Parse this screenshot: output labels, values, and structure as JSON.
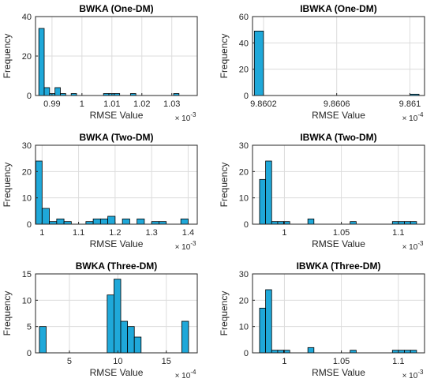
{
  "chart_data": [
    {
      "type": "bar",
      "title": "BWKA (One-DM)",
      "xlabel": "RMSE Value",
      "ylabel": "Frequency",
      "x_exponent_label": "× 10",
      "x_exponent": "-3",
      "xlim": [
        0.9845,
        1.0385
      ],
      "ylim": [
        0,
        40
      ],
      "xticks": [
        0.99,
        1.0,
        1.01,
        1.02,
        1.03
      ],
      "xtick_labels": [
        "0.99",
        "1",
        "1.01",
        "1.02",
        "1.03"
      ],
      "yticks": [
        0,
        20,
        40
      ],
      "ytick_labels": [
        "0",
        "20",
        "40"
      ],
      "grid": true,
      "bin_edges": [
        0.9856,
        0.9874,
        0.9892,
        0.991,
        0.9928,
        0.9946,
        0.9964,
        0.9982,
        1.0,
        1.0018,
        1.0036,
        1.0054,
        1.0072,
        1.009,
        1.0108,
        1.0126,
        1.0144,
        1.0162,
        1.018,
        1.0198,
        1.0216,
        1.0234,
        1.0252,
        1.027,
        1.0288,
        1.0306,
        1.0324,
        1.0342,
        1.036
      ],
      "values": [
        34,
        4,
        1,
        4,
        1,
        0,
        1,
        0,
        0,
        0,
        0,
        0,
        1,
        1,
        1,
        0,
        0,
        1,
        0,
        0,
        0,
        0,
        0,
        0,
        0,
        1,
        0,
        0
      ]
    },
    {
      "type": "bar",
      "title": "IBWKA (One-DM)",
      "xlabel": "RMSE Value",
      "ylabel": "Frequency",
      "x_exponent_label": "× 10",
      "x_exponent": "-4",
      "xlim": [
        9.86014,
        9.86108
      ],
      "ylim": [
        0,
        60
      ],
      "xticks": [
        9.8602,
        9.8606,
        9.861
      ],
      "xtick_labels": [
        "9.8602",
        "9.8606",
        "9.861"
      ],
      "yticks": [
        0,
        20,
        40,
        60
      ],
      "ytick_labels": [
        "0",
        "20",
        "40",
        "60"
      ],
      "grid": true,
      "bin_edges": [
        9.86015,
        9.8602,
        9.86025,
        9.8603,
        9.86035,
        9.8604,
        9.86045,
        9.8605,
        9.86055,
        9.8606,
        9.86065,
        9.8607,
        9.86075,
        9.8608,
        9.86085,
        9.8609,
        9.86095,
        9.861,
        9.86105
      ],
      "values": [
        49,
        0,
        0,
        0,
        0,
        0,
        0,
        0,
        0,
        0,
        0,
        0,
        0,
        0,
        0,
        0,
        0,
        1
      ]
    },
    {
      "type": "bar",
      "title": "BWKA (Two-DM)",
      "xlabel": "RMSE Value",
      "ylabel": "Frequency",
      "x_exponent_label": "× 10",
      "x_exponent": "-3",
      "xlim": [
        0.982,
        1.425
      ],
      "ylim": [
        0,
        30
      ],
      "xticks": [
        1.0,
        1.1,
        1.2,
        1.3,
        1.4
      ],
      "xtick_labels": [
        "1",
        "1.1",
        "1.2",
        "1.3",
        "1.4"
      ],
      "yticks": [
        0,
        10,
        20,
        30
      ],
      "ytick_labels": [
        "0",
        "10",
        "20",
        "30"
      ],
      "grid": true,
      "bin_edges": [
        0.983,
        1.0,
        1.02,
        1.04,
        1.06,
        1.08,
        1.1,
        1.12,
        1.14,
        1.16,
        1.18,
        1.2,
        1.22,
        1.24,
        1.26,
        1.28,
        1.3,
        1.32,
        1.34,
        1.36,
        1.38,
        1.4,
        1.42
      ],
      "values": [
        24,
        6,
        1,
        2,
        1,
        0,
        0,
        1,
        2,
        2,
        3,
        0,
        2,
        0,
        2,
        0,
        1,
        1,
        0,
        0,
        2,
        0
      ]
    },
    {
      "type": "bar",
      "title": "IBWKA (Two-DM)",
      "xlabel": "RMSE Value",
      "ylabel": "Frequency",
      "x_exponent_label": "× 10",
      "x_exponent": "-3",
      "xlim": [
        0.972,
        1.123
      ],
      "ylim": [
        0,
        30
      ],
      "xticks": [
        1.0,
        1.05,
        1.1
      ],
      "xtick_labels": [
        "1",
        "1.05",
        "1.1"
      ],
      "yticks": [
        0,
        10,
        20,
        30
      ],
      "ytick_labels": [
        "0",
        "10",
        "20",
        "30"
      ],
      "grid": true,
      "bin_edges": [
        0.9782,
        0.9835,
        0.9888,
        0.9941,
        0.9994,
        1.0047,
        1.01,
        1.0153,
        1.0206,
        1.0259,
        1.0312,
        1.0365,
        1.0418,
        1.0471,
        1.0524,
        1.0577,
        1.063,
        1.0683,
        1.0736,
        1.0789,
        1.0842,
        1.0895,
        1.0948,
        1.1001,
        1.1054,
        1.1107,
        1.116
      ],
      "values": [
        17,
        24,
        1,
        1,
        1,
        0,
        0,
        0,
        2,
        0,
        0,
        0,
        0,
        0,
        0,
        1,
        0,
        0,
        0,
        0,
        0,
        0,
        1,
        1,
        1,
        1
      ]
    },
    {
      "type": "bar",
      "title": "BWKA (Three-DM)",
      "xlabel": "RMSE Value",
      "ylabel": "Frequency",
      "x_exponent_label": "× 10",
      "x_exponent": "-4",
      "xlim": [
        1.5,
        18.2
      ],
      "ylim": [
        0,
        15
      ],
      "xticks": [
        5,
        10,
        15
      ],
      "xtick_labels": [
        "5",
        "10",
        "15"
      ],
      "yticks": [
        0,
        5,
        10,
        15
      ],
      "ytick_labels": [
        "0",
        "5",
        "10",
        "15"
      ],
      "grid": true,
      "bin_edges": [
        1.9,
        2.6,
        3.3,
        4.0,
        4.7,
        5.4,
        6.1,
        6.8,
        7.5,
        8.2,
        8.9,
        9.6,
        10.3,
        11.0,
        11.7,
        12.4,
        13.1,
        13.8,
        14.5,
        15.2,
        15.9,
        16.6,
        17.3,
        18.0
      ],
      "values": [
        5,
        0,
        0,
        0,
        0,
        0,
        0,
        0,
        0,
        0,
        11,
        14,
        6,
        5,
        3,
        0,
        0,
        0,
        0,
        0,
        0,
        6,
        0
      ]
    },
    {
      "type": "bar",
      "title": "IBWKA (Three-DM)",
      "xlabel": "RMSE Value",
      "ylabel": "Frequency",
      "x_exponent_label": "× 10",
      "x_exponent": "-3",
      "xlim": [
        0.972,
        1.123
      ],
      "ylim": [
        0,
        30
      ],
      "xticks": [
        1.0,
        1.05,
        1.1
      ],
      "xtick_labels": [
        "1",
        "1.05",
        "1.1"
      ],
      "yticks": [
        0,
        10,
        20,
        30
      ],
      "ytick_labels": [
        "0",
        "10",
        "20",
        "30"
      ],
      "grid": true,
      "bin_edges": [
        0.9782,
        0.9835,
        0.9888,
        0.9941,
        0.9994,
        1.0047,
        1.01,
        1.0153,
        1.0206,
        1.0259,
        1.0312,
        1.0365,
        1.0418,
        1.0471,
        1.0524,
        1.0577,
        1.063,
        1.0683,
        1.0736,
        1.0789,
        1.0842,
        1.0895,
        1.0948,
        1.1001,
        1.1054,
        1.1107,
        1.116
      ],
      "values": [
        17,
        24,
        1,
        1,
        1,
        0,
        0,
        0,
        2,
        0,
        0,
        0,
        0,
        0,
        0,
        1,
        0,
        0,
        0,
        0,
        0,
        0,
        1,
        1,
        1,
        1
      ]
    }
  ],
  "colors": {
    "bar_fill": "#1fa8d9",
    "bar_edge": "#000000",
    "axis": "#262626",
    "grid": "#dcdcdc",
    "text": "#262626"
  }
}
